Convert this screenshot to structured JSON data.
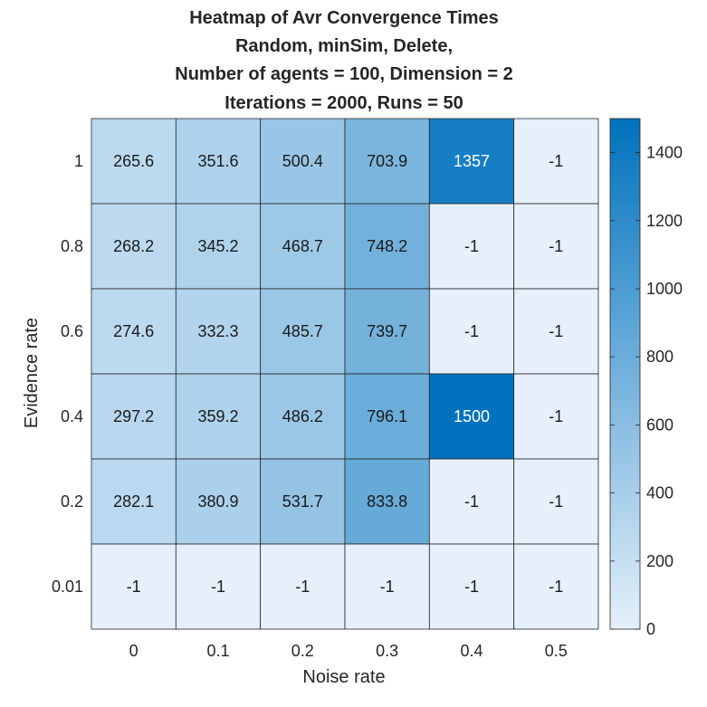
{
  "chart_data": {
    "type": "heatmap",
    "title": [
      "Heatmap of Avr Convergence Times",
      "Random, minSim, Delete,",
      "Number of agents = 100, Dimension = 2",
      "Iterations = 2000, Runs = 50"
    ],
    "xlabel": "Noise rate",
    "ylabel": "Evidence rate",
    "x_categories": [
      "0",
      "0.1",
      "0.2",
      "0.3",
      "0.4",
      "0.5"
    ],
    "y_categories": [
      "1",
      "0.8",
      "0.6",
      "0.4",
      "0.2",
      "0.01"
    ],
    "values": [
      [
        265.6,
        351.6,
        500.4,
        703.9,
        1357,
        -1
      ],
      [
        268.2,
        345.2,
        468.7,
        748.2,
        -1,
        -1
      ],
      [
        274.6,
        332.3,
        485.7,
        739.7,
        -1,
        -1
      ],
      [
        297.2,
        359.2,
        486.2,
        796.1,
        1500,
        -1
      ],
      [
        282.1,
        380.9,
        531.7,
        833.8,
        -1,
        -1
      ],
      [
        -1,
        -1,
        -1,
        -1,
        -1,
        -1
      ]
    ],
    "cell_labels": [
      [
        "265.6",
        "351.6",
        "500.4",
        "703.9",
        "1357",
        "-1"
      ],
      [
        "268.2",
        "345.2",
        "468.7",
        "748.2",
        "-1",
        "-1"
      ],
      [
        "274.6",
        "332.3",
        "485.7",
        "739.7",
        "-1",
        "-1"
      ],
      [
        "297.2",
        "359.2",
        "486.2",
        "796.1",
        "1500",
        "-1"
      ],
      [
        "282.1",
        "380.9",
        "531.7",
        "833.8",
        "-1",
        "-1"
      ],
      [
        "-1",
        "-1",
        "-1",
        "-1",
        "-1",
        "-1"
      ]
    ],
    "colorbar": {
      "range": [
        0,
        1500
      ],
      "ticks": [
        "0",
        "200",
        "400",
        "600",
        "800",
        "1000",
        "1200",
        "1400"
      ],
      "color_low": "#e5f0fa",
      "color_high": "#0072bd"
    }
  }
}
